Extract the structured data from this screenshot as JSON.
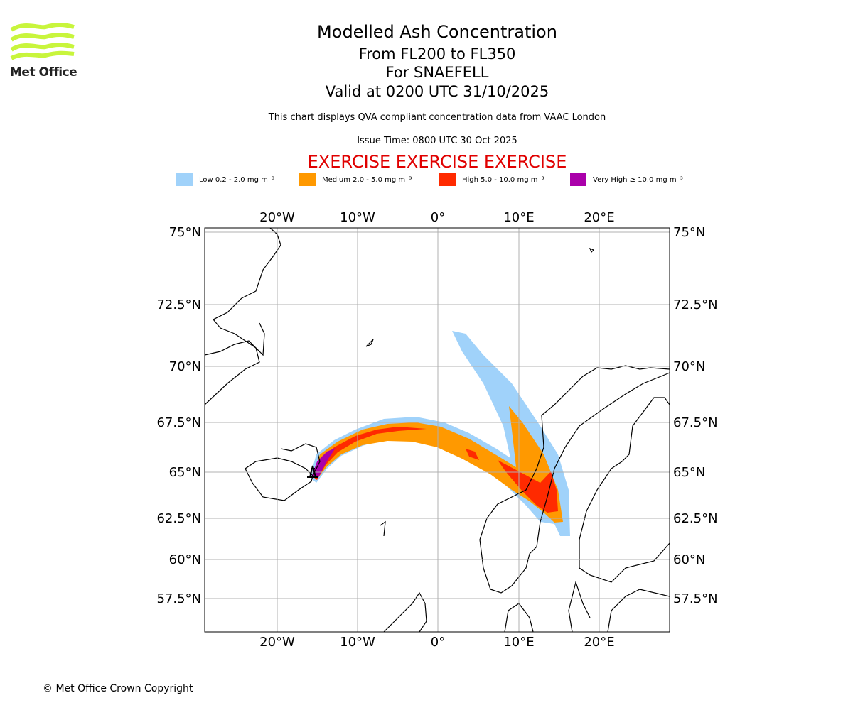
{
  "logo": {
    "text": "Met Office",
    "color": "#c8f53c"
  },
  "header": {
    "title": "Modelled Ash Concentration",
    "levels": "From FL200 to FL350",
    "volcano": "For SNAEFELL",
    "valid": "Valid at 0200 UTC 31/10/2025",
    "description": "This chart displays QVA compliant concentration data from VAAC London",
    "issue_time": "Issue Time: 0800 UTC 30 Oct 2025",
    "exercise": "EXERCISE EXERCISE EXERCISE"
  },
  "legend": [
    {
      "label": "Low 0.2 - 2.0 mg m⁻³",
      "color": "#a0d2fa"
    },
    {
      "label": "Medium 2.0 - 5.0 mg m⁻³",
      "color": "#ff9900"
    },
    {
      "label": "High 5.0 - 10.0 mg m⁻³",
      "color": "#ff2a00"
    },
    {
      "label": "Very High ≥ 10.0 mg m⁻³",
      "color": "#aa00aa"
    }
  ],
  "map": {
    "lon_labels": [
      "20°W",
      "10°W",
      "0°",
      "10°E",
      "20°E"
    ],
    "lat_labels": [
      "75°N",
      "72.5°N",
      "70°N",
      "67.5°N",
      "65°N",
      "62.5°N",
      "60°N",
      "57.5°N"
    ]
  },
  "footer": {
    "copyright": "© Met Office Crown Copyright"
  }
}
